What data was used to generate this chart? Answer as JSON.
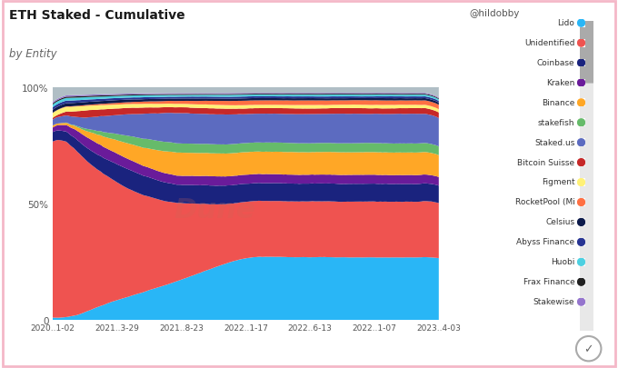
{
  "title": "ETH Staked - Cumulative",
  "subtitle": "by Entity",
  "watermark": "@hildobby",
  "background_color": "#ffffff",
  "border_color": "#f4b8c8",
  "x_labels": [
    "2020..1-02",
    "2021..3-29",
    "2021..8-23",
    "2022..1-17",
    "2022..6-13",
    "2022..1-07",
    "2023..4-03"
  ],
  "y_labels": [
    "0",
    "50%",
    "100%"
  ],
  "entities": [
    {
      "name": "Lido",
      "color": "#29b6f6"
    },
    {
      "name": "Unidentified",
      "color": "#ef5350"
    },
    {
      "name": "Coinbase",
      "color": "#1a237e"
    },
    {
      "name": "Kraken",
      "color": "#6a1b9a"
    },
    {
      "name": "Binance",
      "color": "#ffa726"
    },
    {
      "name": "stakefish",
      "color": "#66bb6a"
    },
    {
      "name": "Staked.us",
      "color": "#5c6bc0"
    },
    {
      "name": "Bitcoin Suisse",
      "color": "#c62828"
    },
    {
      "name": "Figment",
      "color": "#fff176"
    },
    {
      "name": "RocketPool (Mi",
      "color": "#ff7043"
    },
    {
      "name": "Celsius",
      "color": "#0d1b4b"
    },
    {
      "name": "Abyss Finance",
      "color": "#283593"
    },
    {
      "name": "Huobi",
      "color": "#4dd0e1"
    },
    {
      "name": "Frax Finance",
      "color": "#212121"
    },
    {
      "name": "Stakewise",
      "color": "#9575cd"
    }
  ],
  "n_points": 200
}
